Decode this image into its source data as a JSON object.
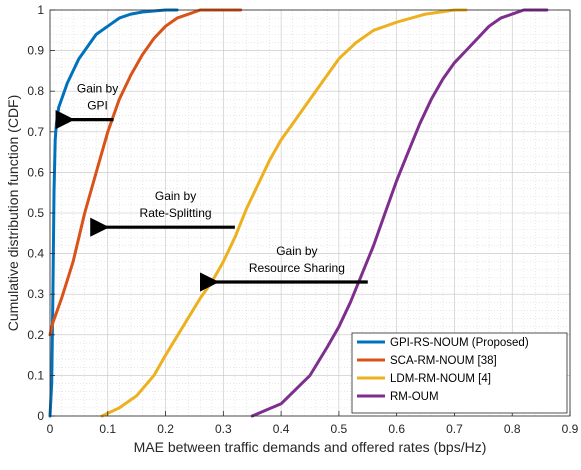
{
  "chart_data": {
    "type": "line",
    "xlabel": "MAE between traffic demands and offered rates (bps/Hz)",
    "ylabel": "Cumulative distribution function (CDF)",
    "xlim": [
      0,
      0.9
    ],
    "ylim": [
      0,
      1
    ],
    "xticks": [
      "0",
      "0.1",
      "0.2",
      "0.3",
      "0.4",
      "0.5",
      "0.6",
      "0.7",
      "0.8",
      "0.9"
    ],
    "yticks": [
      "0",
      "0.1",
      "0.2",
      "0.3",
      "0.4",
      "0.5",
      "0.6",
      "0.7",
      "0.8",
      "0.9",
      "1"
    ],
    "grid": "on (major and minor)",
    "legend_position": "bottom-right",
    "series": [
      {
        "name": "GPI-RS-NOUM (Proposed)",
        "color": "#0072BD",
        "x": [
          0,
          0.003,
          0.005,
          0.007,
          0.009,
          0.011,
          0.015,
          0.02,
          0.03,
          0.04,
          0.05,
          0.06,
          0.07,
          0.08,
          0.1,
          0.12,
          0.14,
          0.16,
          0.2,
          0.22
        ],
        "y": [
          0,
          0.08,
          0.3,
          0.55,
          0.68,
          0.72,
          0.76,
          0.78,
          0.82,
          0.85,
          0.88,
          0.9,
          0.92,
          0.94,
          0.96,
          0.98,
          0.99,
          0.995,
          1.0,
          1.0
        ]
      },
      {
        "name": "SCA-RM-NOUM [38]",
        "color": "#D95319",
        "x": [
          0,
          0.005,
          0.02,
          0.04,
          0.06,
          0.08,
          0.1,
          0.12,
          0.14,
          0.16,
          0.18,
          0.2,
          0.22,
          0.24,
          0.26,
          0.28,
          0.3,
          0.33
        ],
        "y": [
          0.2,
          0.23,
          0.29,
          0.38,
          0.5,
          0.6,
          0.7,
          0.78,
          0.84,
          0.89,
          0.93,
          0.96,
          0.98,
          0.99,
          1.0,
          1.0,
          1.0,
          1.0
        ]
      },
      {
        "name": "LDM-RM-NOUM [4]",
        "color": "#EDB120",
        "x": [
          0.09,
          0.12,
          0.15,
          0.18,
          0.2,
          0.23,
          0.26,
          0.28,
          0.3,
          0.32,
          0.34,
          0.36,
          0.38,
          0.4,
          0.42,
          0.45,
          0.48,
          0.5,
          0.53,
          0.56,
          0.6,
          0.65,
          0.7,
          0.72
        ],
        "y": [
          0,
          0.02,
          0.05,
          0.1,
          0.15,
          0.22,
          0.29,
          0.33,
          0.38,
          0.44,
          0.51,
          0.57,
          0.63,
          0.68,
          0.72,
          0.78,
          0.84,
          0.88,
          0.92,
          0.95,
          0.97,
          0.99,
          1.0,
          1.0
        ]
      },
      {
        "name": "RM-OUM",
        "color": "#7E2F8E",
        "x": [
          0.35,
          0.4,
          0.45,
          0.48,
          0.5,
          0.52,
          0.54,
          0.56,
          0.58,
          0.6,
          0.62,
          0.64,
          0.66,
          0.68,
          0.7,
          0.72,
          0.74,
          0.76,
          0.78,
          0.8,
          0.82,
          0.84,
          0.86
        ],
        "y": [
          0,
          0.03,
          0.1,
          0.17,
          0.22,
          0.28,
          0.35,
          0.42,
          0.5,
          0.58,
          0.65,
          0.72,
          0.78,
          0.83,
          0.87,
          0.9,
          0.93,
          0.96,
          0.98,
          0.99,
          1.0,
          1.0,
          1.0
        ]
      }
    ],
    "annotations": [
      {
        "lines": [
          "Gain by",
          "GPI"
        ],
        "arrow_from": [
          0.11,
          0.73
        ],
        "arrow_to": [
          0.02,
          0.73
        ]
      },
      {
        "lines": [
          "Gain by",
          "Rate-Splitting"
        ],
        "arrow_from": [
          0.32,
          0.465
        ],
        "arrow_to": [
          0.08,
          0.465
        ]
      },
      {
        "lines": [
          "Gain by",
          "Resource Sharing"
        ],
        "arrow_from": [
          0.55,
          0.33
        ],
        "arrow_to": [
          0.27,
          0.33
        ]
      }
    ]
  }
}
